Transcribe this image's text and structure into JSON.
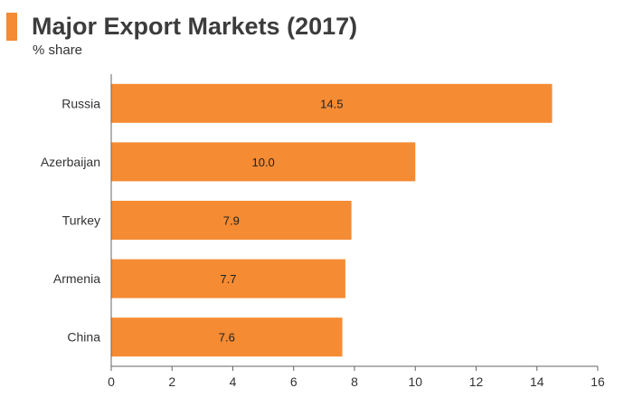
{
  "header": {
    "title": "Major Export Markets (2017)",
    "subtitle": "% share"
  },
  "colors": {
    "accent": "#f58b33",
    "bar": "#f58b33",
    "axis": "#666666",
    "text": "#333333"
  },
  "chart_data": {
    "type": "bar",
    "orientation": "horizontal",
    "title": "Major Export Markets (2017)",
    "subtitle": "% share",
    "categories": [
      "Russia",
      "Azerbaijan",
      "Turkey",
      "Armenia",
      "China"
    ],
    "values": [
      14.5,
      10.0,
      7.9,
      7.7,
      7.6
    ],
    "value_labels": [
      "14.5",
      "10.0",
      "7.9",
      "7.7",
      "7.6"
    ],
    "xlim": [
      0,
      16
    ],
    "xticks": [
      0,
      2,
      4,
      6,
      8,
      10,
      12,
      14,
      16
    ],
    "xlabel": "",
    "ylabel": "",
    "grid": false,
    "legend": false
  }
}
